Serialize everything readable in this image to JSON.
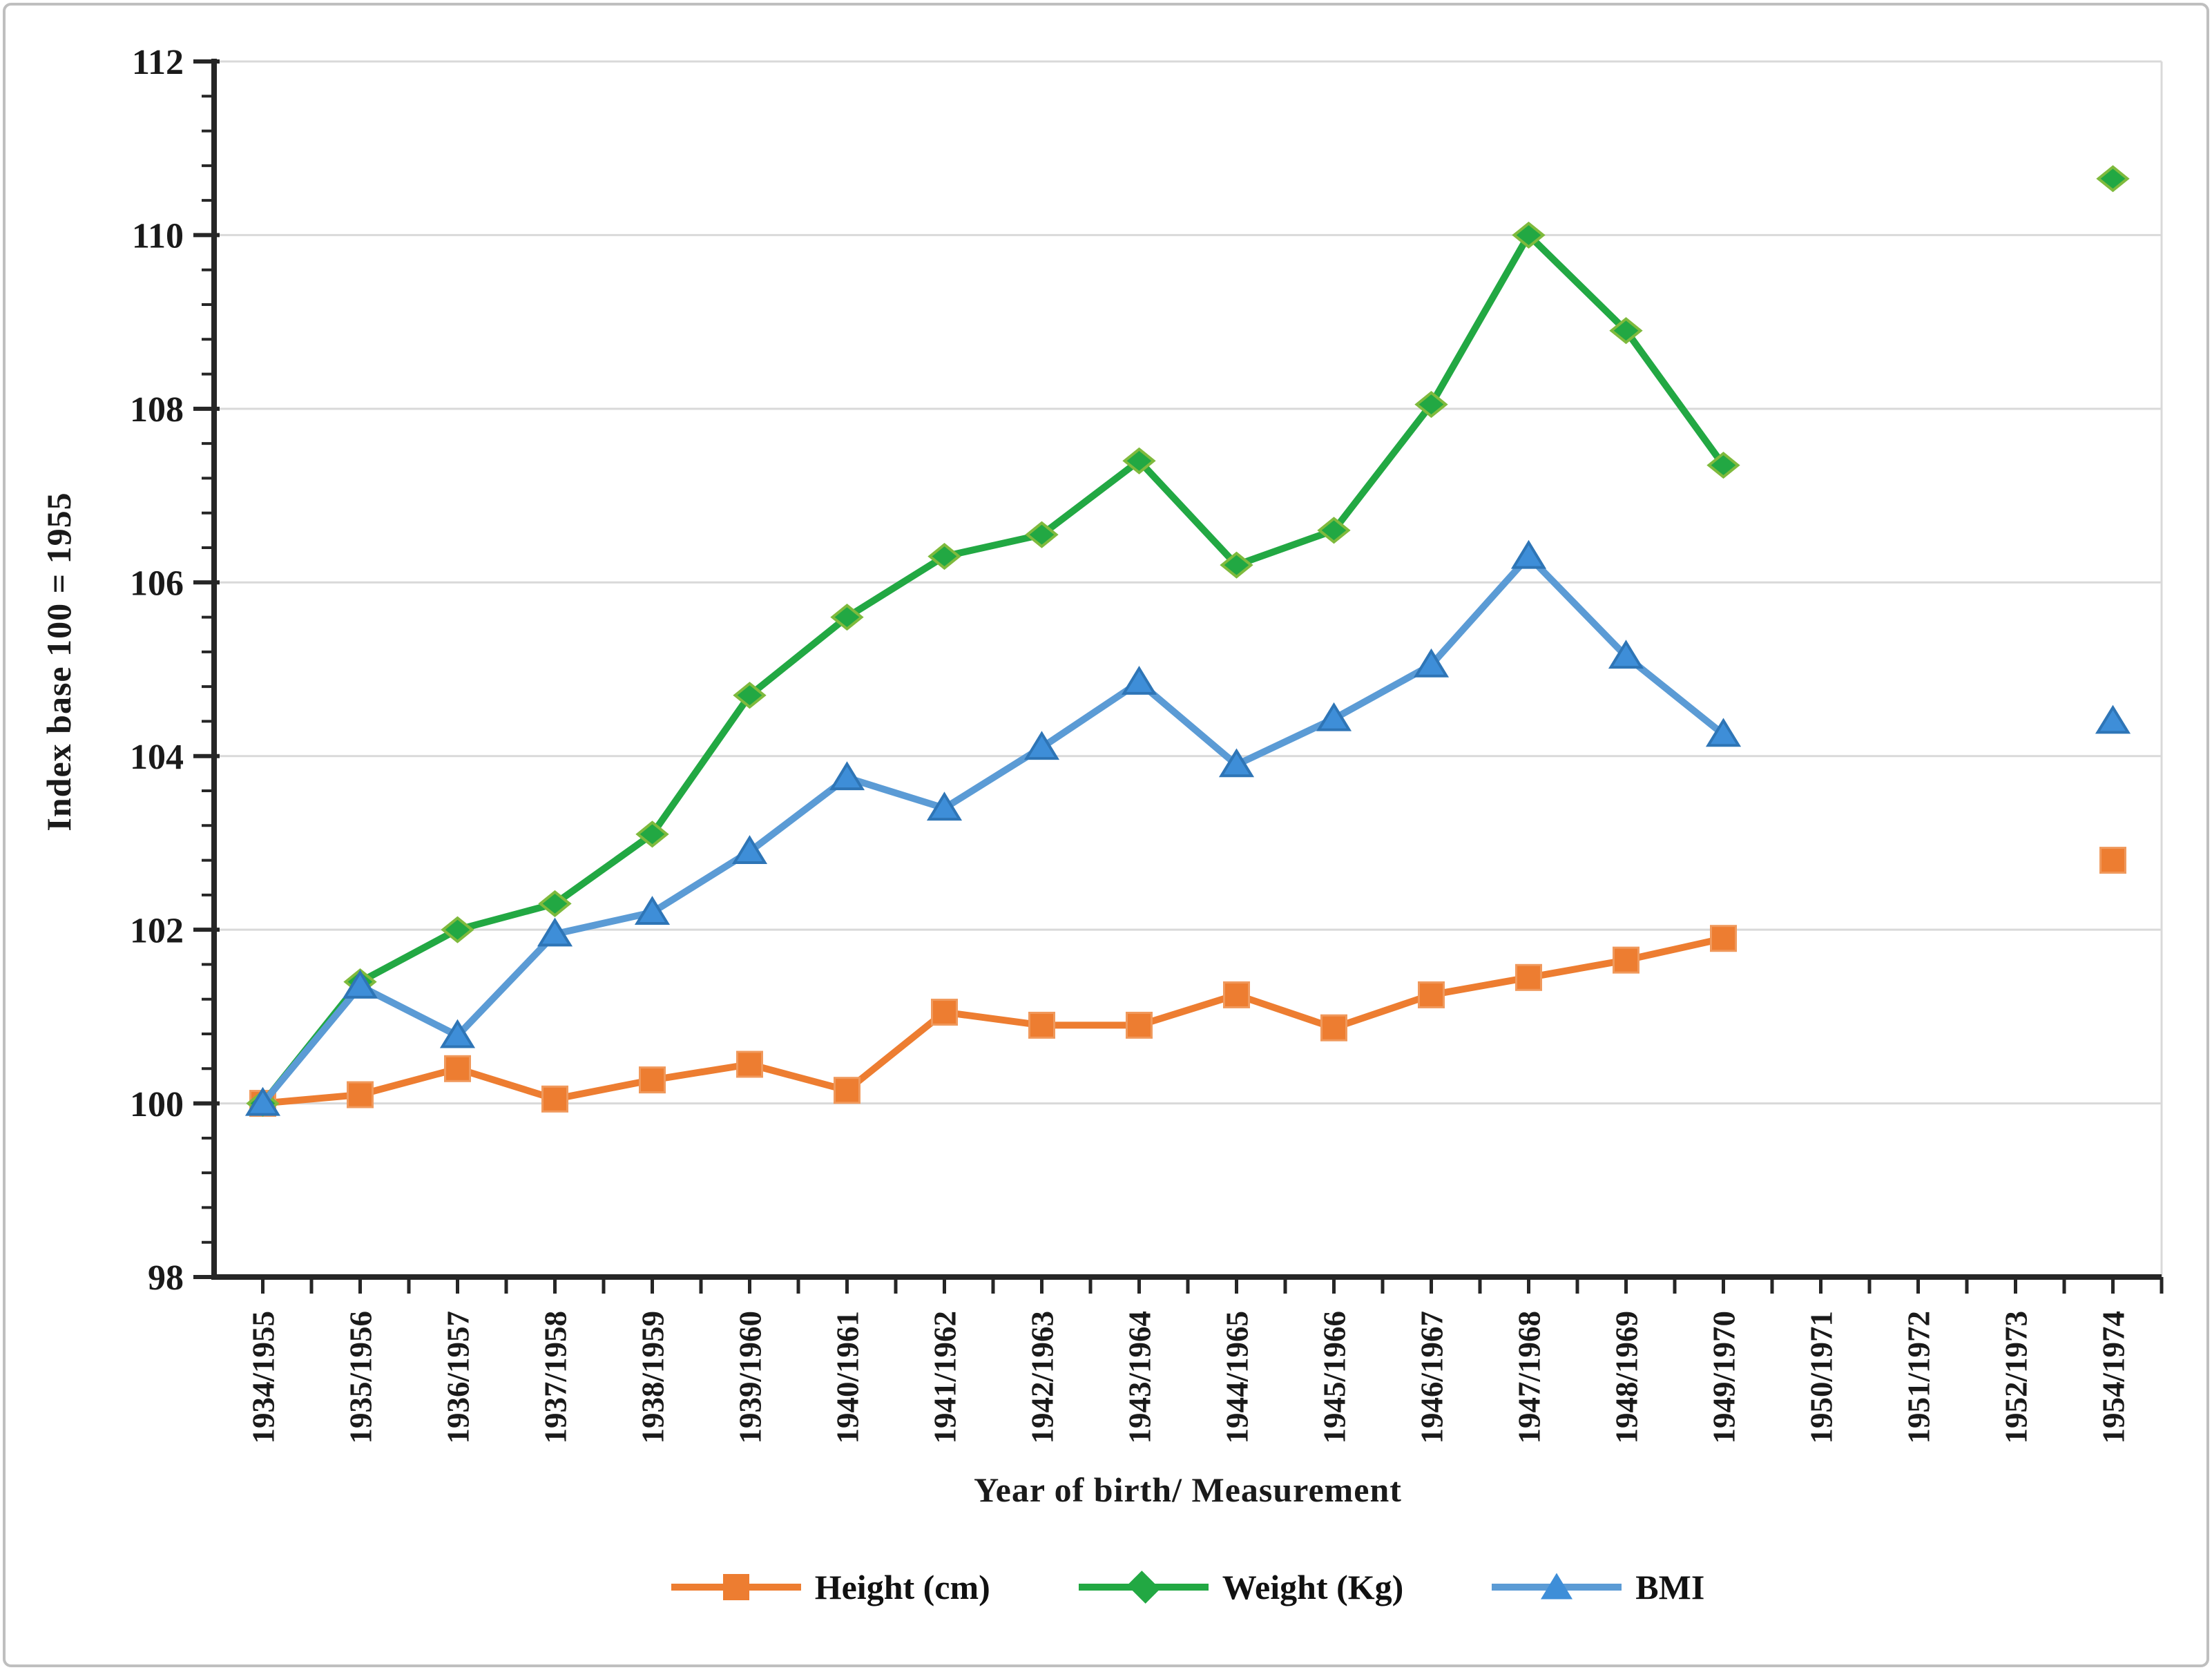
{
  "figure": {
    "background": "#ffffff",
    "border_color": "#bfbfbf"
  },
  "chart_data": {
    "type": "line",
    "title": "",
    "xlabel": "Year of birth/ Measurement",
    "ylabel": "Index base 100 = 1955",
    "ylim": [
      98,
      112
    ],
    "y_major_step": 2,
    "y_minor_step": 0.4,
    "y_tick_labels": [
      "98",
      "100",
      "102",
      "104",
      "106",
      "108",
      "110",
      "112"
    ],
    "grid": "horizontal-major",
    "legend_position": "bottom",
    "categories": [
      "1934/1955",
      "1935/1956",
      "1936/1957",
      "1937/1958",
      "1938/1959",
      "1939/1960",
      "1940/1961",
      "1941/1962",
      "1942/1963",
      "1943/1964",
      "1944/1965",
      "1945/1966",
      "1946/1967",
      "1947/1968",
      "1948/1969",
      "1949/1970",
      "1950/1971",
      "1951/1972",
      "1952/1973",
      "1954/1974"
    ],
    "series": [
      {
        "name": "Height (cm)",
        "marker": "square",
        "color": "#ED7D31",
        "marker_fill": "#ED7D31",
        "marker_stroke": "#F0995C",
        "values": [
          100.0,
          100.1,
          100.4,
          100.05,
          100.27,
          100.45,
          100.15,
          101.05,
          100.9,
          100.9,
          101.25,
          100.87,
          101.25,
          101.45,
          101.65,
          101.9,
          null,
          null,
          null,
          102.8
        ]
      },
      {
        "name": "Weight (Kg)",
        "marker": "diamond",
        "color": "#22A843",
        "marker_fill": "#22A843",
        "marker_stroke": "#7FBA3D",
        "values": [
          100.0,
          101.4,
          102.0,
          102.3,
          103.1,
          104.7,
          105.6,
          106.3,
          106.55,
          107.4,
          106.2,
          106.6,
          108.05,
          110.0,
          108.9,
          107.35,
          null,
          null,
          null,
          110.65
        ]
      },
      {
        "name": "BMI",
        "marker": "triangle",
        "color": "#5B9BD5",
        "marker_fill": "#3E8ED8",
        "marker_stroke": "#2E75B6",
        "values": [
          100.0,
          101.35,
          100.78,
          101.95,
          102.2,
          102.9,
          103.75,
          103.4,
          104.1,
          104.85,
          103.9,
          104.43,
          105.05,
          106.3,
          105.15,
          104.25,
          null,
          null,
          null,
          104.4
        ]
      }
    ],
    "colors": {
      "axis": "#262626",
      "gridline": "#d9d9d9",
      "plot_right_border": "#d9d9d9",
      "tick": "#262626",
      "text": "#1a1a1a"
    }
  }
}
